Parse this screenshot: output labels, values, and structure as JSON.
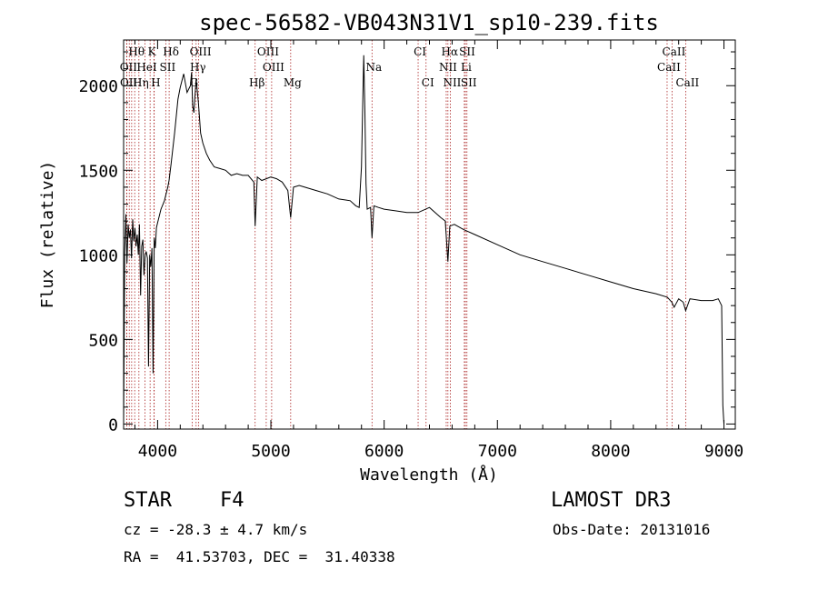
{
  "chart_data": {
    "type": "line",
    "title": "spec-56582-VB043N31V1_sp10-239.fits",
    "xlabel": "Wavelength (Å)",
    "ylabel": "Flux (relative)",
    "xlim": [
      3700,
      9100
    ],
    "ylim": [
      -30,
      2270
    ],
    "xticks": [
      4000,
      5000,
      6000,
      7000,
      8000,
      9000
    ],
    "xtick_labels": [
      "4000",
      "5000",
      "6000",
      "7000",
      "8000",
      "9000"
    ],
    "yticks": [
      0,
      500,
      1000,
      1500,
      2000
    ],
    "ytick_labels": [
      "0",
      "500",
      "1000",
      "1500",
      "2000"
    ],
    "series": [
      {
        "name": "spectrum",
        "x": [
          3700,
          3710,
          3720,
          3730,
          3740,
          3750,
          3760,
          3770,
          3780,
          3790,
          3800,
          3810,
          3820,
          3830,
          3840,
          3850,
          3860,
          3870,
          3880,
          3890,
          3900,
          3910,
          3920,
          3930,
          3940,
          3950,
          3960,
          3970,
          3980,
          3990,
          4000,
          4030,
          4060,
          4090,
          4101,
          4120,
          4150,
          4180,
          4200,
          4230,
          4260,
          4290,
          4300,
          4310,
          4320,
          4340,
          4360,
          4380,
          4400,
          4430,
          4460,
          4500,
          4550,
          4600,
          4650,
          4700,
          4750,
          4800,
          4850,
          4861,
          4880,
          4920,
          4960,
          5000,
          5050,
          5100,
          5150,
          5175,
          5200,
          5250,
          5300,
          5400,
          5500,
          5600,
          5700,
          5750,
          5780,
          5800,
          5810,
          5820,
          5830,
          5840,
          5850,
          5880,
          5893,
          5910,
          5950,
          6000,
          6100,
          6200,
          6300,
          6400,
          6500,
          6540,
          6563,
          6580,
          6620,
          6700,
          6800,
          7000,
          7200,
          7400,
          7600,
          7800,
          8000,
          8200,
          8400,
          8500,
          8540,
          8560,
          8600,
          8640,
          8662,
          8700,
          8800,
          8900,
          8950,
          8980,
          8990,
          9000
        ],
        "values": [
          0,
          1020,
          1240,
          950,
          1180,
          1100,
          1150,
          980,
          1210,
          1080,
          1160,
          1050,
          1120,
          1000,
          1180,
          760,
          1050,
          1090,
          880,
          1000,
          1020,
          980,
          340,
          1000,
          930,
          1040,
          300,
          1100,
          1040,
          1160,
          1190,
          1270,
          1320,
          1400,
          1440,
          1540,
          1720,
          1920,
          1990,
          2070,
          1960,
          2000,
          2080,
          1880,
          1840,
          2040,
          1900,
          1720,
          1660,
          1600,
          1560,
          1520,
          1510,
          1500,
          1470,
          1480,
          1470,
          1470,
          1430,
          1170,
          1460,
          1440,
          1450,
          1460,
          1450,
          1430,
          1380,
          1220,
          1400,
          1410,
          1400,
          1380,
          1360,
          1330,
          1320,
          1290,
          1280,
          1520,
          1870,
          2180,
          1840,
          1420,
          1270,
          1280,
          1100,
          1290,
          1280,
          1270,
          1260,
          1250,
          1250,
          1280,
          1220,
          1200,
          960,
          1170,
          1180,
          1150,
          1120,
          1060,
          1000,
          960,
          920,
          880,
          840,
          800,
          770,
          750,
          720,
          690,
          740,
          720,
          670,
          740,
          730,
          730,
          740,
          700,
          110,
          0
        ]
      }
    ],
    "lines_top": [
      {
        "label": "Hθ",
        "x": 3798
      },
      {
        "label": "K",
        "x": 3934
      },
      {
        "label": "Hδ",
        "x": 4102
      },
      {
        "label": "OIII",
        "x": 4363
      },
      {
        "label": "OIII",
        "x": 4959
      },
      {
        "label": "CI",
        "x": 6300
      },
      {
        "label": "Hα",
        "x": 6563
      },
      {
        "label": "SII",
        "x": 6717
      },
      {
        "label": "CaII",
        "x": 8542
      }
    ],
    "lines_mid": [
      {
        "label": "OII",
        "x": 3727
      },
      {
        "label": "HeI",
        "x": 3889
      },
      {
        "label": "SII",
        "x": 4072
      },
      {
        "label": "Hγ",
        "x": 4340
      },
      {
        "label": "OIII",
        "x": 5007
      },
      {
        "label": "Na",
        "x": 5893
      },
      {
        "label": "NII",
        "x": 6548
      },
      {
        "label": "Li",
        "x": 6708
      },
      {
        "label": "CaII",
        "x": 8498
      }
    ],
    "lines_low": [
      {
        "label": "OII",
        "x": 3729
      },
      {
        "label": "Hη",
        "x": 3835
      },
      {
        "label": "H",
        "x": 3968
      },
      {
        "label": "G",
        "x": 4305
      },
      {
        "label": "Hβ",
        "x": 4861
      },
      {
        "label": "Mg",
        "x": 5175
      },
      {
        "label": "CI",
        "x": 6370
      },
      {
        "label": "NII",
        "x": 6584
      },
      {
        "label": "SII",
        "x": 6731
      },
      {
        "label": "CaII",
        "x": 8662
      }
    ],
    "extra_lines": [
      3750,
      3771,
      3970,
      3889,
      4072,
      4305,
      4861,
      5007,
      5893,
      6300,
      6370,
      6548,
      6584,
      6708,
      6731,
      8498,
      8542,
      8662
    ]
  },
  "info": {
    "object_class": "STAR",
    "subclass": "F4",
    "survey": "LAMOST DR3",
    "redshift": "cz = -28.3 ± 4.7 km/s",
    "obs_date": "Obs-Date: 20131016",
    "coords": "RA =  41.53703, DEC =  31.40338"
  },
  "colors": {
    "spectrum": "#000000",
    "line_marker": "#aa2222",
    "axes": "#000000"
  }
}
